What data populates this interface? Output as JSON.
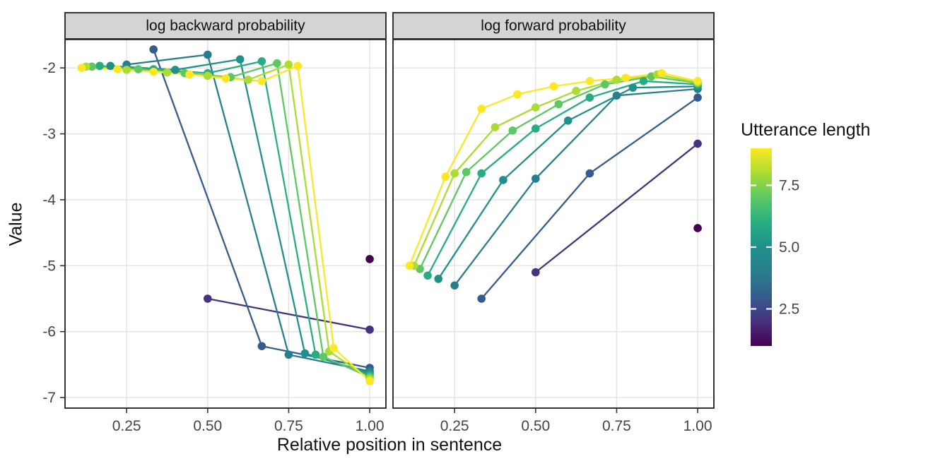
{
  "figure": {
    "x_axis": {
      "title": "Relative position in sentence",
      "tick_labels": [
        "0.25",
        "0.50",
        "0.75",
        "1.00"
      ],
      "tick_values": [
        0.25,
        0.5,
        0.75,
        1.0
      ],
      "range": [
        0.06,
        1.05
      ]
    },
    "y_axis": {
      "title": "Value",
      "tick_labels": [
        "-2",
        "-3",
        "-4",
        "-5",
        "-6",
        "-7"
      ],
      "tick_values": [
        -2,
        -3,
        -4,
        -5,
        -6,
        -7
      ],
      "range": [
        -7.16,
        -1.57
      ]
    },
    "legend": {
      "title": "Utterance length",
      "tick_labels": [
        "2.5",
        "5.0",
        "7.5"
      ],
      "tick_values": [
        2.5,
        5.0,
        7.5
      ],
      "range": [
        1,
        9
      ],
      "colormap": "viridis",
      "gradient": [
        "#440154",
        "#46327E",
        "#365C8D",
        "#277F8E",
        "#21908C",
        "#27AD81",
        "#5DC863",
        "#AADC32",
        "#FDE725"
      ]
    },
    "colors": {
      "panel_bg": "#ffffff",
      "grid": "#e3e3e3",
      "strip_bg": "#d4d4d4",
      "border": "#333333",
      "tick_text": "#454545"
    }
  },
  "chart_data": {
    "type": "line",
    "x_variable": "Relative position in sentence",
    "y_variable": "Value",
    "color_variable": "Utterance length",
    "facets": [
      {
        "label": "log backward probability",
        "series": [
          {
            "utterance_length": 1,
            "color": "#440154",
            "points": [
              [
                1.0,
                -4.9
              ]
            ]
          },
          {
            "utterance_length": 2,
            "color": "#46327E",
            "points": [
              [
                0.5,
                -5.5
              ],
              [
                1.0,
                -5.97
              ]
            ]
          },
          {
            "utterance_length": 3,
            "color": "#365C8D",
            "points": [
              [
                0.333,
                -1.72
              ],
              [
                0.667,
                -6.22
              ],
              [
                1.0,
                -6.55
              ]
            ]
          },
          {
            "utterance_length": 4,
            "color": "#277F8E",
            "points": [
              [
                0.25,
                -1.95
              ],
              [
                0.5,
                -1.8
              ],
              [
                0.75,
                -6.35
              ],
              [
                1.0,
                -6.6
              ]
            ]
          },
          {
            "utterance_length": 5,
            "color": "#21908C",
            "points": [
              [
                0.2,
                -1.97
              ],
              [
                0.4,
                -2.03
              ],
              [
                0.6,
                -1.87
              ],
              [
                0.8,
                -6.33
              ],
              [
                1.0,
                -6.63
              ]
            ]
          },
          {
            "utterance_length": 6,
            "color": "#27AD81",
            "points": [
              [
                0.167,
                -1.97
              ],
              [
                0.333,
                -2.02
              ],
              [
                0.5,
                -2.08
              ],
              [
                0.667,
                -1.9
              ],
              [
                0.833,
                -6.35
              ],
              [
                1.0,
                -6.66
              ]
            ]
          },
          {
            "utterance_length": 7,
            "color": "#5DC863",
            "points": [
              [
                0.143,
                -1.98
              ],
              [
                0.286,
                -2.02
              ],
              [
                0.429,
                -2.08
              ],
              [
                0.571,
                -2.14
              ],
              [
                0.714,
                -1.93
              ],
              [
                0.857,
                -6.38
              ],
              [
                1.0,
                -6.69
              ]
            ]
          },
          {
            "utterance_length": 8,
            "color": "#AADC32",
            "points": [
              [
                0.125,
                -1.98
              ],
              [
                0.25,
                -2.03
              ],
              [
                0.375,
                -2.07
              ],
              [
                0.5,
                -2.12
              ],
              [
                0.625,
                -2.18
              ],
              [
                0.75,
                -1.95
              ],
              [
                0.875,
                -6.3
              ],
              [
                1.0,
                -6.72
              ]
            ]
          },
          {
            "utterance_length": 9,
            "color": "#FDE725",
            "points": [
              [
                0.111,
                -2.0
              ],
              [
                0.222,
                -2.02
              ],
              [
                0.333,
                -2.06
              ],
              [
                0.444,
                -2.1
              ],
              [
                0.556,
                -2.16
              ],
              [
                0.667,
                -2.2
              ],
              [
                0.778,
                -1.97
              ],
              [
                0.889,
                -6.25
              ],
              [
                1.0,
                -6.75
              ]
            ]
          }
        ]
      },
      {
        "label": "log forward probability",
        "series": [
          {
            "utterance_length": 1,
            "color": "#440154",
            "points": [
              [
                1.0,
                -4.43
              ]
            ]
          },
          {
            "utterance_length": 2,
            "color": "#46327E",
            "points": [
              [
                0.5,
                -5.1
              ],
              [
                1.0,
                -3.15
              ]
            ]
          },
          {
            "utterance_length": 3,
            "color": "#365C8D",
            "points": [
              [
                0.333,
                -5.5
              ],
              [
                0.667,
                -3.6
              ],
              [
                1.0,
                -2.45
              ]
            ]
          },
          {
            "utterance_length": 4,
            "color": "#277F8E",
            "points": [
              [
                0.25,
                -5.3
              ],
              [
                0.5,
                -3.68
              ],
              [
                0.75,
                -2.42
              ],
              [
                1.0,
                -2.32
              ]
            ]
          },
          {
            "utterance_length": 5,
            "color": "#21908C",
            "points": [
              [
                0.2,
                -5.2
              ],
              [
                0.4,
                -3.7
              ],
              [
                0.6,
                -2.8
              ],
              [
                0.8,
                -2.3
              ],
              [
                1.0,
                -2.28
              ]
            ]
          },
          {
            "utterance_length": 6,
            "color": "#27AD81",
            "points": [
              [
                0.167,
                -5.15
              ],
              [
                0.333,
                -3.6
              ],
              [
                0.5,
                -2.92
              ],
              [
                0.667,
                -2.45
              ],
              [
                0.833,
                -2.2
              ],
              [
                1.0,
                -2.25
              ]
            ]
          },
          {
            "utterance_length": 7,
            "color": "#5DC863",
            "points": [
              [
                0.143,
                -5.05
              ],
              [
                0.286,
                -3.58
              ],
              [
                0.429,
                -2.95
              ],
              [
                0.571,
                -2.55
              ],
              [
                0.714,
                -2.25
              ],
              [
                0.857,
                -2.13
              ],
              [
                1.0,
                -2.23
              ]
            ]
          },
          {
            "utterance_length": 8,
            "color": "#AADC32",
            "points": [
              [
                0.125,
                -5.0
              ],
              [
                0.25,
                -3.6
              ],
              [
                0.375,
                -2.9
              ],
              [
                0.5,
                -2.6
              ],
              [
                0.625,
                -2.35
              ],
              [
                0.75,
                -2.18
              ],
              [
                0.875,
                -2.1
              ],
              [
                1.0,
                -2.22
              ]
            ]
          },
          {
            "utterance_length": 9,
            "color": "#FDE725",
            "points": [
              [
                0.111,
                -5.0
              ],
              [
                0.222,
                -3.65
              ],
              [
                0.333,
                -2.62
              ],
              [
                0.444,
                -2.4
              ],
              [
                0.556,
                -2.28
              ],
              [
                0.667,
                -2.2
              ],
              [
                0.778,
                -2.15
              ],
              [
                0.889,
                -2.08
              ],
              [
                1.0,
                -2.2
              ]
            ]
          }
        ]
      }
    ]
  }
}
